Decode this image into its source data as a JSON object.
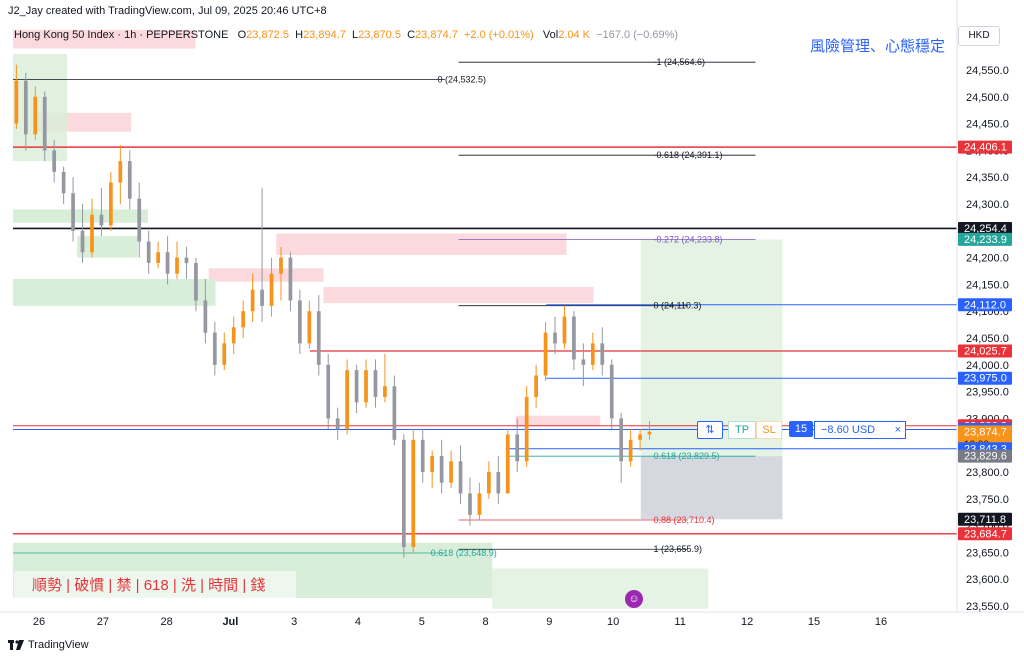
{
  "header": {
    "created_by": "J2_Jay created with TradingView.com, Jul 09, 2025 20:46 UTC+8"
  },
  "legend": {
    "symbol": "Hong Kong 50 Index · 1h · PEPPERSTONE",
    "o_label": "O",
    "o": "23,872.5",
    "h_label": "H",
    "h": "23,894.7",
    "l_label": "L",
    "l": "23,870.5",
    "c_label": "C",
    "c": "23,874.7",
    "chg": "+2.0 (+0.01%)",
    "vol_label": "Vol",
    "vol": "2.04 K",
    "vol_chg": "−167.0 (−0.69%)"
  },
  "title_cn": "風險管理、心態穩定",
  "currency": "HKD",
  "banner": "順勢 | 破慣 | 禁 | 618 | 洗 | 時間 | 錢",
  "footer": {
    "brand": "TradingView"
  },
  "order": {
    "arrows": "⇅",
    "tp": "TP",
    "sl": "SL",
    "qty": "15",
    "pl": "−8.60 USD",
    "close": "×"
  },
  "colors": {
    "up": "#f7931a",
    "down": "#9598a1",
    "red": "#e8333a",
    "blue": "#2962ff",
    "green": "#26a69a",
    "zone_green": "#d8eed8",
    "zone_red": "#fbd9dc"
  },
  "chart_data": {
    "type": "candlestick",
    "symbol": "Hong Kong 50 Index",
    "interval": "1h",
    "ylim": [
      23520,
      24600
    ],
    "y_ticks": [
      23550,
      23600,
      23650,
      23700,
      23750,
      23800,
      23850,
      23900,
      23950,
      24000,
      24050,
      24100,
      24150,
      24200,
      24250,
      24300,
      24350,
      24400,
      24450,
      24500,
      24550
    ],
    "x_ticks": [
      {
        "label": "26",
        "t": 2
      },
      {
        "label": "27",
        "t": 12
      },
      {
        "label": "28",
        "t": 22
      },
      {
        "label": "Jul",
        "t": 32
      },
      {
        "label": "3",
        "t": 42
      },
      {
        "label": "4",
        "t": 52
      },
      {
        "label": "5",
        "t": 62
      },
      {
        "label": "8",
        "t": 72
      },
      {
        "label": "9",
        "t": 82
      },
      {
        "label": "10",
        "t": 92
      },
      {
        "label": "11",
        "t": 102.5
      },
      {
        "label": "12",
        "t": 113
      },
      {
        "label": "15",
        "t": 123.5
      },
      {
        "label": "16",
        "t": 134
      }
    ],
    "price_labels": [
      {
        "value": 24406.1,
        "text": "24,406.1",
        "color": "#e8333a"
      },
      {
        "value": 24254.4,
        "text": "24,254.4",
        "color": "#131722"
      },
      {
        "value": 24233.9,
        "text": "24,233.9",
        "color": "#26a69a"
      },
      {
        "value": 24112.0,
        "text": "24,112.0",
        "color": "#2962ff"
      },
      {
        "value": 24025.7,
        "text": "24,025.7",
        "color": "#e8333a"
      },
      {
        "value": 23975.0,
        "text": "23,975.0",
        "color": "#2962ff"
      },
      {
        "value": 23886.2,
        "text": "23,886.2",
        "color": "#e8333a"
      },
      {
        "value": 23879.2,
        "text": "23,879.2",
        "color": "#2962ff"
      },
      {
        "value": 23874.7,
        "text": "23,874.7",
        "color": "#f7931a",
        "sub": "13:09"
      },
      {
        "value": 23843.3,
        "text": "23,843.3",
        "color": "#2962ff"
      },
      {
        "value": 23829.6,
        "text": "23,829.6",
        "color": "#787b86"
      },
      {
        "value": 23711.8,
        "text": "23,711.8",
        "color": "#131722"
      },
      {
        "value": 23684.7,
        "text": "23,684.7",
        "color": "#e8333a"
      }
    ],
    "fib_labels": [
      {
        "value": 24532.5,
        "text": "0 (24,532.5)",
        "t": 62,
        "color": "#131722"
      },
      {
        "value": 24564.6,
        "text": "-1 (24,564.6)",
        "t": 94,
        "color": "#131722"
      },
      {
        "value": 24391.1,
        "text": "-0.618 (24,391.1)",
        "t": 94,
        "color": "#131722"
      },
      {
        "value": 24233.8,
        "text": "-0.272 (24,233.8)",
        "t": 94,
        "color": "#7e57c2"
      },
      {
        "value": 24110.3,
        "text": "0 (24,110.3)",
        "t": 94,
        "color": "#131722"
      },
      {
        "value": 23829.5,
        "text": "0.618 (23,829.5)",
        "t": 94,
        "color": "#26a69a"
      },
      {
        "value": 23710.4,
        "text": "0.88 (23,710.4)",
        "t": 94,
        "color": "#e8333a"
      },
      {
        "value": 23655.9,
        "text": "1 (23,655.9)",
        "t": 94,
        "color": "#131722"
      },
      {
        "value": 23648.9,
        "text": "0.618 (23,648.9)",
        "t": 61,
        "color": "#26a69a"
      }
    ],
    "candles": [
      [
        24450,
        24560,
        24440,
        24530
      ],
      [
        24530,
        24545,
        24400,
        24430
      ],
      [
        24430,
        24520,
        24420,
        24500
      ],
      [
        24500,
        24510,
        24380,
        24400
      ],
      [
        24400,
        24420,
        24340,
        24360
      ],
      [
        24360,
        24370,
        24300,
        24320
      ],
      [
        24320,
        24350,
        24230,
        24250
      ],
      [
        24250,
        24300,
        24190,
        24210
      ],
      [
        24210,
        24310,
        24200,
        24280
      ],
      [
        24280,
        24330,
        24240,
        24260
      ],
      [
        24260,
        24360,
        24250,
        24340
      ],
      [
        24340,
        24410,
        24300,
        24380
      ],
      [
        24380,
        24400,
        24290,
        24310
      ],
      [
        24310,
        24340,
        24200,
        24230
      ],
      [
        24230,
        24250,
        24170,
        24190
      ],
      [
        24190,
        24230,
        24180,
        24210
      ],
      [
        24210,
        24240,
        24150,
        24170
      ],
      [
        24170,
        24230,
        24160,
        24200
      ],
      [
        24200,
        24220,
        24160,
        24190
      ],
      [
        24190,
        24200,
        24100,
        24120
      ],
      [
        24120,
        24160,
        24040,
        24060
      ],
      [
        24060,
        24080,
        23980,
        24000
      ],
      [
        24000,
        24060,
        23990,
        24040
      ],
      [
        24040,
        24090,
        24020,
        24070
      ],
      [
        24070,
        24120,
        24050,
        24100
      ],
      [
        24100,
        24170,
        24080,
        24140
      ],
      [
        24140,
        24330,
        24080,
        24110
      ],
      [
        24110,
        24200,
        24090,
        24170
      ],
      [
        24170,
        24220,
        24120,
        24200
      ],
      [
        24200,
        24210,
        24100,
        24120
      ],
      [
        24120,
        24140,
        24020,
        24040
      ],
      [
        24040,
        24120,
        24030,
        24100
      ],
      [
        24100,
        24130,
        23980,
        24000
      ],
      [
        24000,
        24020,
        23880,
        23900
      ],
      [
        23900,
        23920,
        23860,
        23880
      ],
      [
        23880,
        24010,
        23870,
        23990
      ],
      [
        23990,
        24000,
        23910,
        23930
      ],
      [
        23930,
        24010,
        23920,
        23990
      ],
      [
        23990,
        24010,
        23920,
        23940
      ],
      [
        23940,
        24020,
        23930,
        23960
      ],
      [
        23960,
        23980,
        23850,
        23860
      ],
      [
        23860,
        23870,
        23640,
        23660
      ],
      [
        23660,
        23880,
        23650,
        23860
      ],
      [
        23860,
        23880,
        23780,
        23800
      ],
      [
        23800,
        23840,
        23770,
        23830
      ],
      [
        23830,
        23860,
        23760,
        23780
      ],
      [
        23780,
        23840,
        23770,
        23820
      ],
      [
        23820,
        23850,
        23740,
        23760
      ],
      [
        23760,
        23790,
        23700,
        23720
      ],
      [
        23720,
        23780,
        23710,
        23760
      ],
      [
        23760,
        23820,
        23750,
        23800
      ],
      [
        23800,
        23830,
        23740,
        23760
      ],
      [
        23760,
        23880,
        23760,
        23870
      ],
      [
        23870,
        23900,
        23800,
        23820
      ],
      [
        23820,
        23960,
        23810,
        23940
      ],
      [
        23940,
        24000,
        23920,
        23980
      ],
      [
        23980,
        24080,
        23970,
        24060
      ],
      [
        24060,
        24090,
        24020,
        24040
      ],
      [
        24040,
        24110,
        24030,
        24090
      ],
      [
        24090,
        24100,
        23990,
        24010
      ],
      [
        24010,
        24040,
        23960,
        24000
      ],
      [
        24000,
        24060,
        23990,
        24040
      ],
      [
        24040,
        24070,
        23980,
        24000
      ],
      [
        24000,
        24010,
        23880,
        23900
      ],
      [
        23900,
        23910,
        23780,
        23820
      ],
      [
        23820,
        23880,
        23810,
        23860
      ],
      [
        23860,
        23880,
        23840,
        23870
      ],
      [
        23870,
        23895,
        23860,
        23875
      ]
    ]
  }
}
